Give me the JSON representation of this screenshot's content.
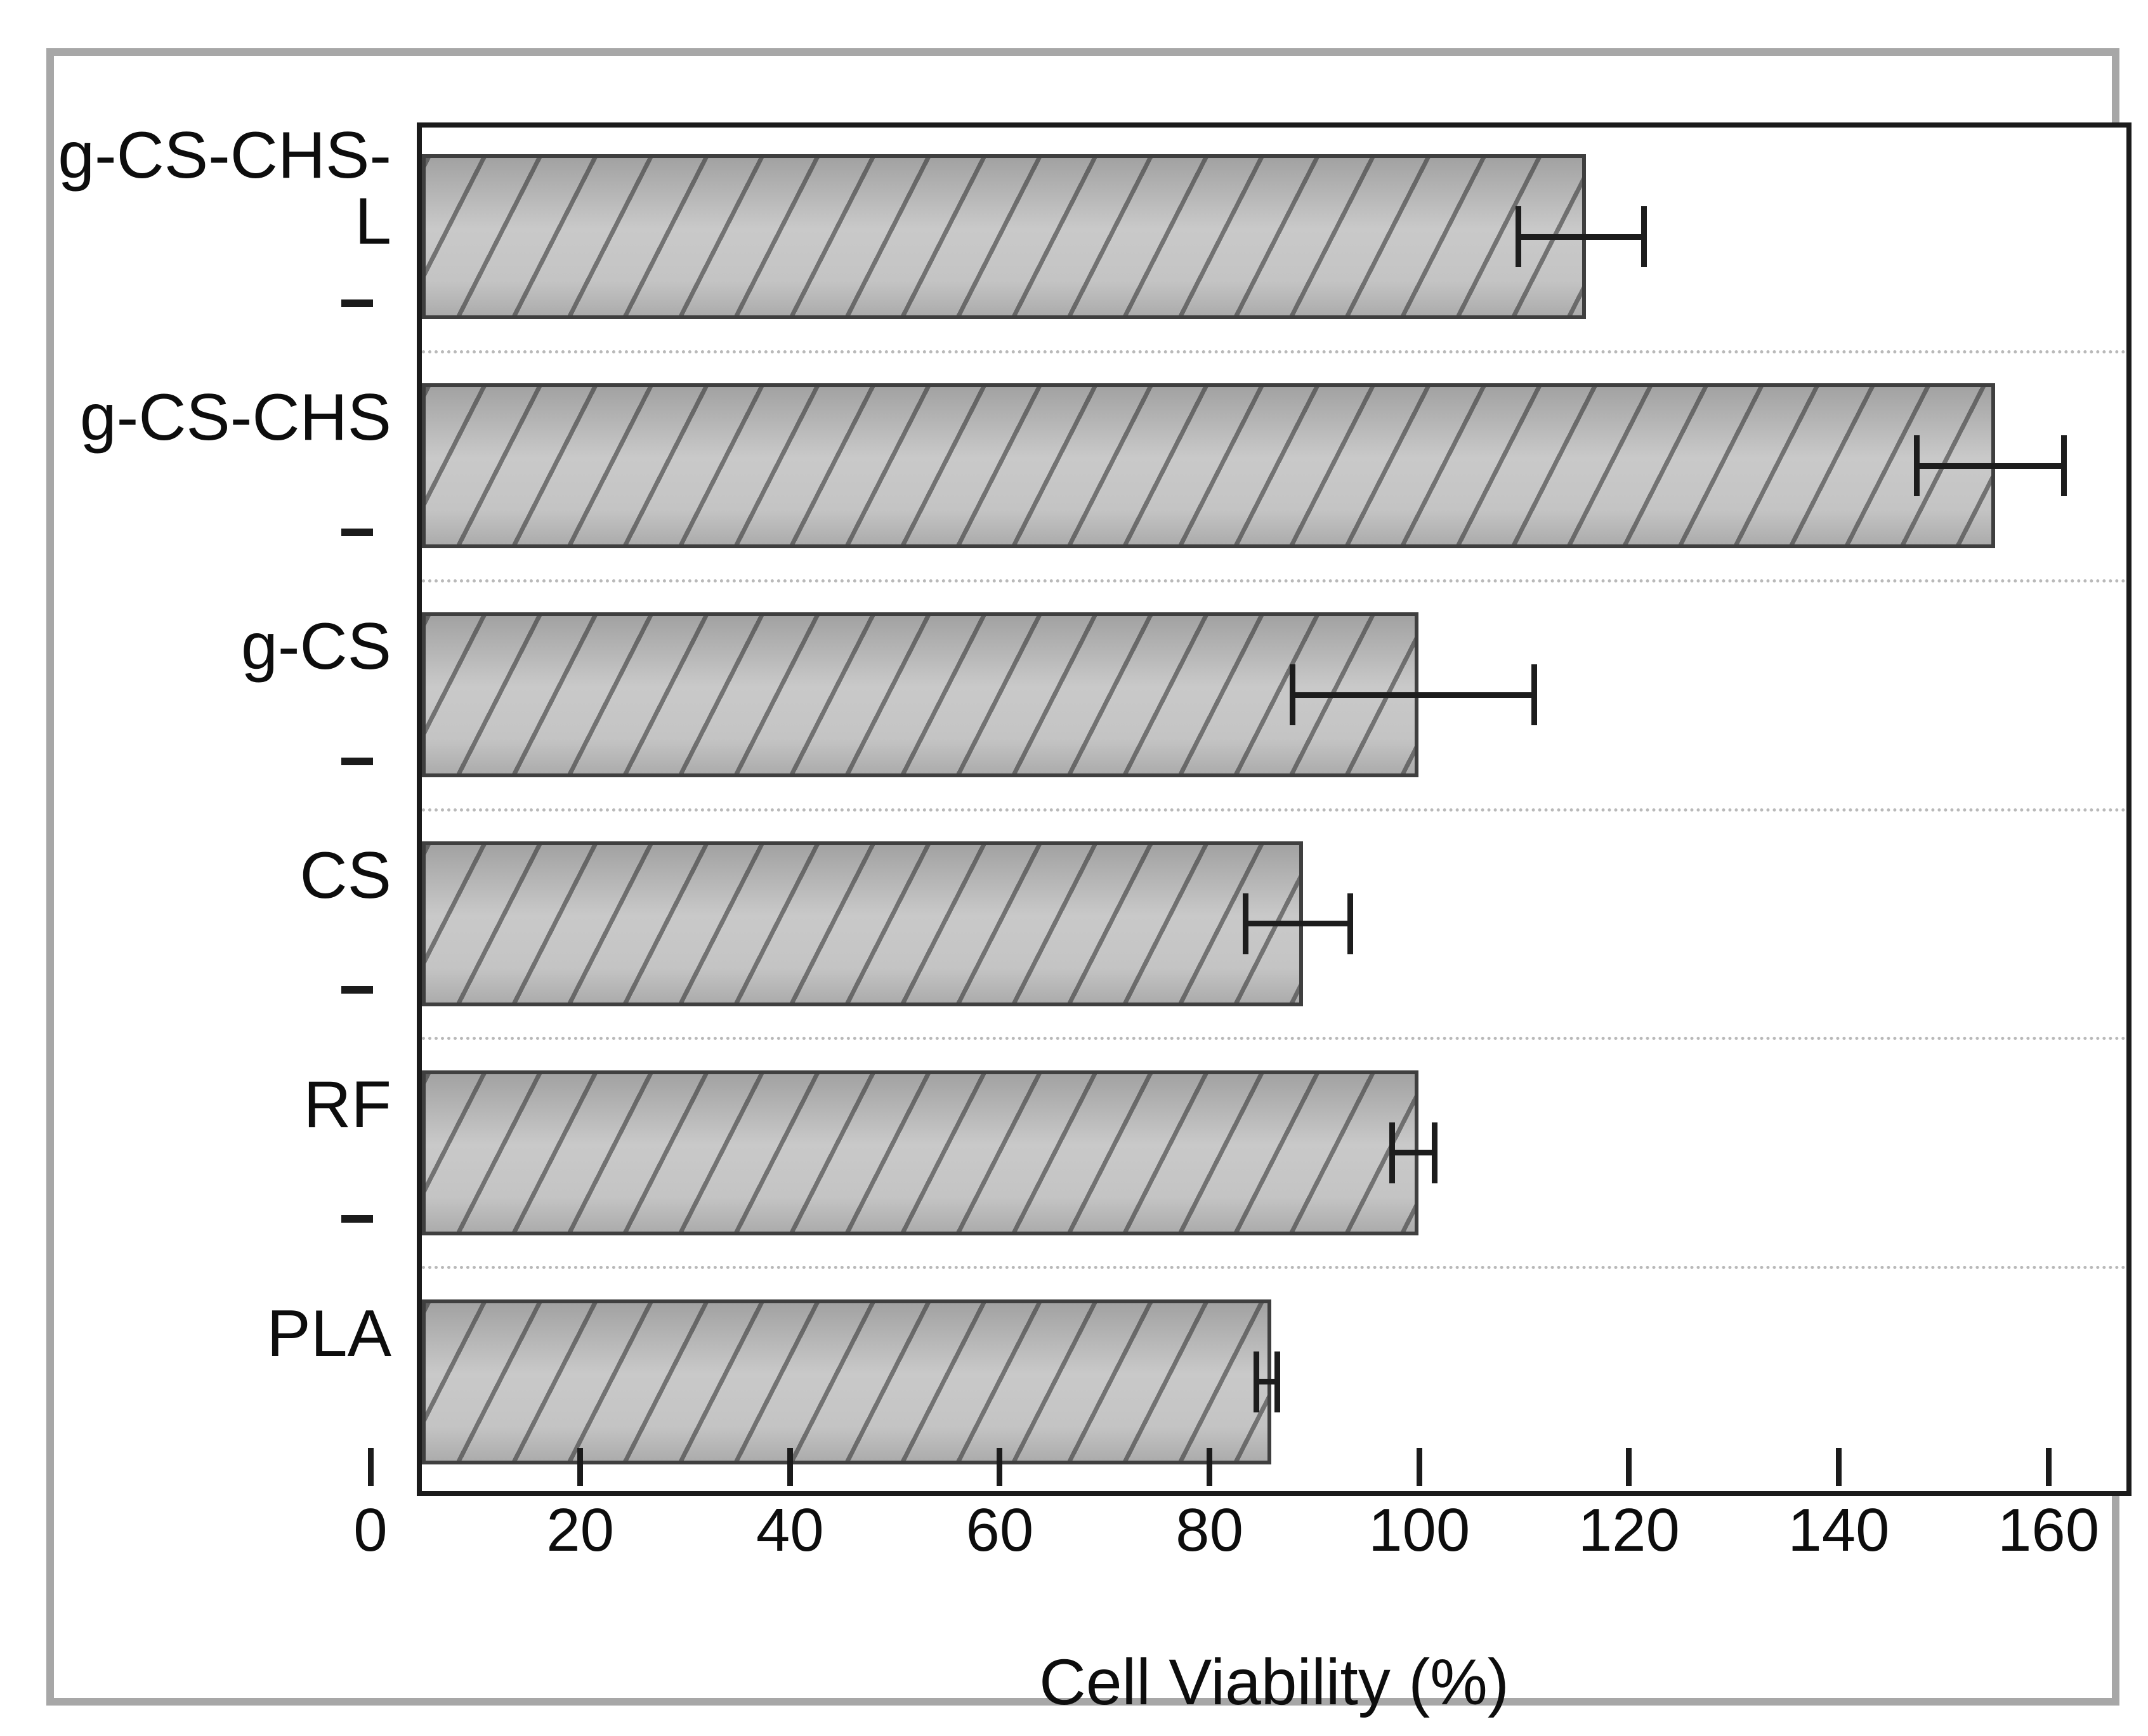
{
  "figure": {
    "xlabel": "Cell Viability (%)"
  },
  "chart_data": {
    "type": "bar",
    "orientation": "horizontal",
    "title": "",
    "xlabel": "Cell Viability (%)",
    "ylabel": "",
    "categories": [
      "g-CS-CHS-L",
      "g-CS-CHS",
      "g-CS",
      "CS",
      "RF",
      "PLA"
    ],
    "series": [
      {
        "name": "Cell Viability (%)",
        "values": [
          111,
          150,
          95,
          84,
          95,
          81
        ],
        "errors": [
          6,
          7,
          11.5,
          5,
          2,
          1
        ]
      }
    ],
    "xlim": [
      0,
      163.5
    ],
    "xticks": [
      0,
      20,
      40,
      60,
      80,
      100,
      120,
      140,
      160
    ],
    "legend_position": "none",
    "grid": "dotted horizontal separators between category slots",
    "bar_hatch": "forward-diagonal",
    "colors": {
      "bar_fill_top": "#a2a2a2",
      "bar_fill_bottom": "#c9c9c9",
      "bar_border": "#3f3f3f",
      "hatch_line": "#4a4a4a",
      "error_bar": "#1d1d1d",
      "plot_frame": "#1b1b1b",
      "separator": "#b9b9b9",
      "outer_border": "#a7a7a7",
      "text": "#0d0d0d",
      "background": "#ffffff"
    }
  }
}
